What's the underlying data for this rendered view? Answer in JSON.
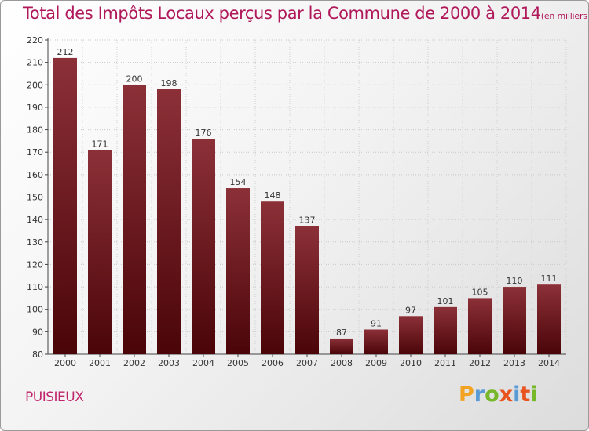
{
  "header": {
    "title": "Total des Impôts Locaux perçus par la Commune de 2000 à 2014",
    "unit": "(en milliers d'€)"
  },
  "footer": {
    "commune": "PUISIEUX",
    "logo_text": "Proxiti",
    "logo_colors": [
      "#f2a321",
      "#5b9bd5",
      "#76b82a",
      "#e8541e",
      "#5b9bd5",
      "#e8541e",
      "#76b82a"
    ]
  },
  "colors": {
    "bar_top": "#8c3038",
    "bar_bottom": "#4a0508",
    "title": "#b0185a",
    "axis": "#444444"
  },
  "chart_data": {
    "type": "bar",
    "categories": [
      "2000",
      "2001",
      "2002",
      "2003",
      "2004",
      "2005",
      "2006",
      "2007",
      "2008",
      "2009",
      "2010",
      "2011",
      "2012",
      "2013",
      "2014"
    ],
    "values": [
      212,
      171,
      200,
      198,
      176,
      154,
      148,
      137,
      87,
      91,
      97,
      101,
      105,
      110,
      111
    ],
    "ylim": [
      80,
      220
    ],
    "yticks": [
      80,
      90,
      100,
      110,
      120,
      130,
      140,
      150,
      160,
      170,
      180,
      190,
      200,
      210,
      220
    ],
    "grid": true,
    "xlabel": "",
    "ylabel": ""
  }
}
